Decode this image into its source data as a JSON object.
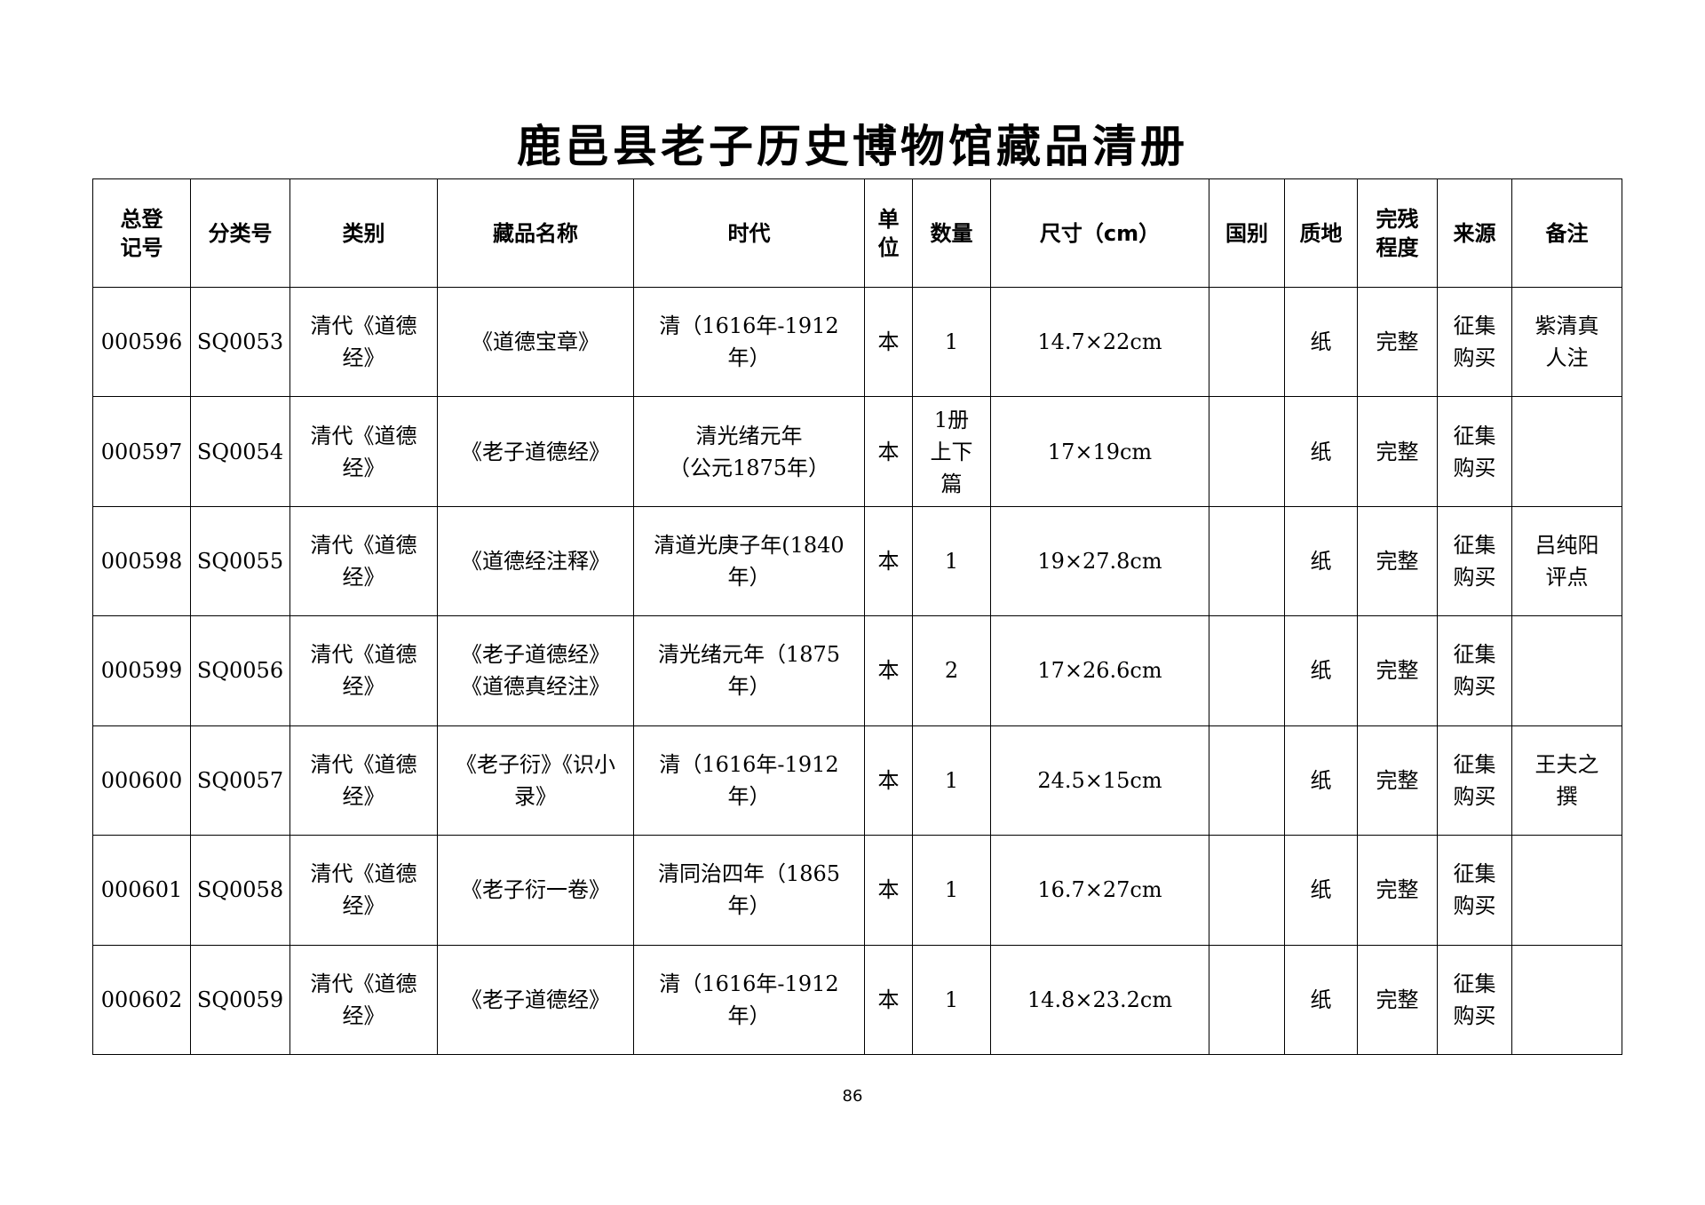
{
  "title": "鹿邑县老子历史博物馆藏品清册",
  "columns": [
    "总登\n记号",
    "分类号",
    "类别",
    "藏品名称",
    "时代",
    "单\n位",
    "数量",
    "尺寸（cm）",
    "国别",
    "质地",
    "完残\n程度",
    "来源",
    "备注"
  ],
  "rows": [
    [
      "000596",
      "SQ0053",
      "清代《道德\n经》",
      "《道德宝章》",
      "清（1616年-1912\n年）",
      "本",
      "1",
      "14.7×22cm",
      "",
      "纸",
      "完整",
      "征集\n购买",
      "紫清真\n人注"
    ],
    [
      "000597",
      "SQ0054",
      "清代《道德\n经》",
      "《老子道德经》",
      "清光绪元年\n（公元1875年）",
      "本",
      "1册\n上下\n篇",
      "17×19cm",
      "",
      "纸",
      "完整",
      "征集\n购买",
      ""
    ],
    [
      "000598",
      "SQ0055",
      "清代《道德\n经》",
      "《道德经注释》",
      "清道光庚子年(1840\n年）",
      "本",
      "1",
      "19×27.8cm",
      "",
      "纸",
      "完整",
      "征集\n购买",
      "吕纯阳\n评点"
    ],
    [
      "000599",
      "SQ0056",
      "清代《道德\n经》",
      "《老子道德经》\n《道德真经注》",
      "清光绪元年（1875\n年）",
      "本",
      "2",
      "17×26.6cm",
      "",
      "纸",
      "完整",
      "征集\n购买",
      ""
    ],
    [
      "000600",
      "SQ0057",
      "清代《道德\n经》",
      "《老子衍》《识小\n录》",
      "清（1616年-1912\n年）",
      "本",
      "1",
      "24.5×15cm",
      "",
      "纸",
      "完整",
      "征集\n购买",
      "王夫之\n撰"
    ],
    [
      "000601",
      "SQ0058",
      "清代《道德\n经》",
      "《老子衍一卷》",
      "清同治四年（1865\n年）",
      "本",
      "1",
      "16.7×27cm",
      "",
      "纸",
      "完整",
      "征集\n购买",
      ""
    ],
    [
      "000602",
      "SQ0059",
      "清代《道德\n经》",
      "《老子道德经》",
      "清（1616年-1912\n年）",
      "本",
      "1",
      "14.8×23.2cm",
      "",
      "纸",
      "完整",
      "征集\n购买",
      ""
    ]
  ],
  "page_number": "86"
}
